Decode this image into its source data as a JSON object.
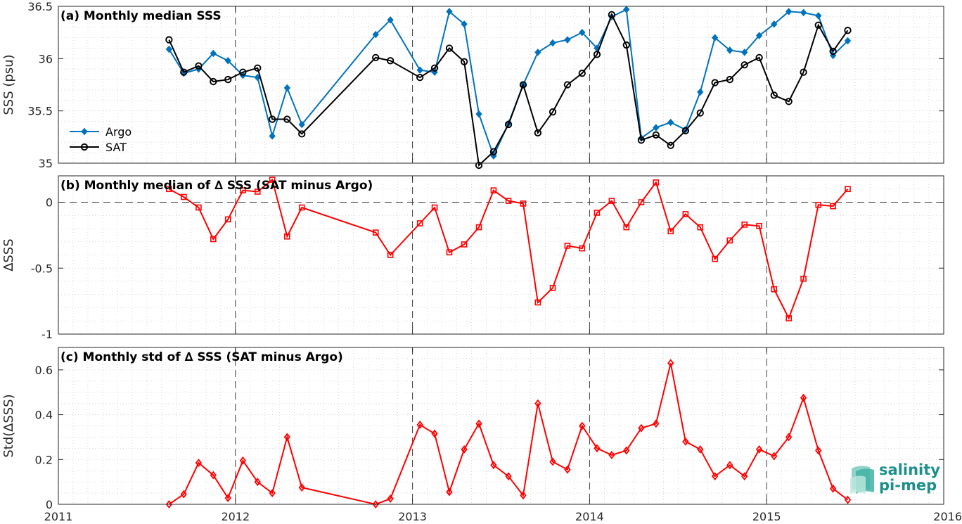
{
  "chart_data": [
    {
      "type": "line",
      "title": "(a) Monthly median SSS",
      "xlabel": "",
      "ylabel": "SSS (psu)",
      "xlim": [
        2011,
        2016
      ],
      "ylim": [
        35,
        36.5
      ],
      "yticks": [
        35,
        35.5,
        36,
        36.5
      ],
      "ytick_labels": [
        "35",
        "35.5",
        "36",
        "36.5"
      ],
      "grid": true,
      "legend_position": "middle-left",
      "x": [
        2011.625,
        2011.708,
        2011.792,
        2011.875,
        2011.958,
        2012.042,
        2012.125,
        2012.208,
        2012.292,
        2012.375,
        2012.792,
        2012.875,
        2013.042,
        2013.125,
        2013.208,
        2013.292,
        2013.375,
        2013.458,
        2013.542,
        2013.625,
        2013.708,
        2013.792,
        2013.875,
        2013.958,
        2014.042,
        2014.125,
        2014.208,
        2014.292,
        2014.375,
        2014.458,
        2014.542,
        2014.625,
        2014.708,
        2014.792,
        2014.875,
        2014.958,
        2015.042,
        2015.125,
        2015.208,
        2015.292,
        2015.375,
        2015.458
      ],
      "series": [
        {
          "name": "Argo",
          "color": "#0072BD",
          "marker": "diamond",
          "values": [
            36.09,
            35.86,
            35.9,
            36.05,
            35.98,
            35.84,
            35.82,
            35.26,
            35.72,
            35.37,
            36.23,
            36.37,
            35.89,
            35.87,
            36.45,
            36.33,
            35.47,
            35.07,
            35.38,
            35.75,
            36.06,
            36.15,
            36.18,
            36.25,
            36.1,
            36.4,
            36.47,
            35.24,
            35.34,
            35.39,
            35.32,
            35.68,
            36.2,
            36.08,
            36.06,
            36.22,
            36.33,
            36.45,
            36.44,
            36.41,
            36.03,
            36.17
          ]
        },
        {
          "name": "SAT",
          "color": "#000000",
          "marker": "circle",
          "values": [
            36.18,
            35.87,
            35.93,
            35.78,
            35.8,
            35.87,
            35.91,
            35.42,
            35.42,
            35.28,
            36.01,
            35.98,
            35.82,
            35.91,
            36.1,
            35.97,
            34.98,
            35.11,
            35.37,
            35.75,
            35.29,
            35.49,
            35.75,
            35.86,
            36.04,
            36.42,
            36.13,
            35.22,
            35.27,
            35.17,
            35.31,
            35.48,
            35.77,
            35.8,
            35.94,
            36.01,
            35.65,
            35.59,
            35.87,
            36.32,
            36.07,
            36.27
          ]
        }
      ]
    },
    {
      "type": "line",
      "title": "(b) Monthly median of ∆ SSS (SAT minus Argo)",
      "xlabel": "",
      "ylabel": "∆SSS",
      "xlim": [
        2011,
        2016
      ],
      "ylim": [
        -1,
        0.2
      ],
      "yticks": [
        -1,
        -0.5,
        0
      ],
      "ytick_labels": [
        "-1",
        "-0.5",
        "0"
      ],
      "grid": true,
      "x": [
        2011.625,
        2011.708,
        2011.792,
        2011.875,
        2011.958,
        2012.042,
        2012.125,
        2012.208,
        2012.292,
        2012.375,
        2012.792,
        2012.875,
        2013.042,
        2013.125,
        2013.208,
        2013.292,
        2013.375,
        2013.458,
        2013.542,
        2013.625,
        2013.708,
        2013.792,
        2013.875,
        2013.958,
        2014.042,
        2014.125,
        2014.208,
        2014.292,
        2014.375,
        2014.458,
        2014.542,
        2014.625,
        2014.708,
        2014.792,
        2014.875,
        2014.958,
        2015.042,
        2015.125,
        2015.208,
        2015.292,
        2015.375,
        2015.458
      ],
      "series": [
        {
          "color": "#FF0000",
          "marker": "square",
          "values": [
            0.1,
            0.04,
            -0.04,
            -0.28,
            -0.13,
            0.09,
            0.08,
            0.17,
            -0.26,
            -0.04,
            -0.23,
            -0.4,
            -0.16,
            -0.04,
            -0.38,
            -0.32,
            -0.19,
            0.09,
            0.01,
            -0.01,
            -0.76,
            -0.65,
            -0.33,
            -0.35,
            -0.08,
            0.01,
            -0.19,
            0.0,
            0.15,
            -0.22,
            -0.09,
            -0.19,
            -0.43,
            -0.29,
            -0.17,
            -0.18,
            -0.66,
            -0.88,
            -0.58,
            -0.02,
            -0.03,
            0.1
          ]
        }
      ]
    },
    {
      "type": "line",
      "title": "(c) Monthly std of ∆ SSS (SAT minus Argo)",
      "xlabel": "",
      "ylabel": "Std(∆SSS)",
      "xlim": [
        2011,
        2016
      ],
      "ylim": [
        0,
        0.7
      ],
      "yticks": [
        0,
        0.2,
        0.4,
        0.6
      ],
      "ytick_labels": [
        "0",
        "0.2",
        "0.4",
        "0.6"
      ],
      "xticks": [
        2011,
        2012,
        2013,
        2014,
        2015,
        2016
      ],
      "xtick_labels": [
        "2011",
        "2012",
        "2013",
        "2014",
        "2015",
        "2016"
      ],
      "grid": true,
      "x": [
        2011.625,
        2011.708,
        2011.792,
        2011.875,
        2011.958,
        2012.042,
        2012.125,
        2012.208,
        2012.292,
        2012.375,
        2012.792,
        2012.875,
        2013.042,
        2013.125,
        2013.208,
        2013.292,
        2013.375,
        2013.458,
        2013.542,
        2013.625,
        2013.708,
        2013.792,
        2013.875,
        2013.958,
        2014.042,
        2014.125,
        2014.208,
        2014.292,
        2014.375,
        2014.458,
        2014.542,
        2014.625,
        2014.708,
        2014.792,
        2014.875,
        2014.958,
        2015.042,
        2015.125,
        2015.208,
        2015.292,
        2015.375,
        2015.458
      ],
      "series": [
        {
          "color": "#FF0000",
          "marker": "diamond",
          "values": [
            0.0,
            0.045,
            0.185,
            0.13,
            0.028,
            0.195,
            0.1,
            0.05,
            0.3,
            0.075,
            0.0,
            0.025,
            0.355,
            0.315,
            0.055,
            0.245,
            0.36,
            0.175,
            0.125,
            0.04,
            0.45,
            0.19,
            0.155,
            0.35,
            0.25,
            0.22,
            0.24,
            0.34,
            0.36,
            0.63,
            0.28,
            0.245,
            0.125,
            0.175,
            0.125,
            0.245,
            0.215,
            0.3,
            0.475,
            0.24,
            0.07,
            0.02
          ]
        }
      ]
    }
  ],
  "logo": {
    "line1": "salinity",
    "line2": "pi-mep"
  }
}
